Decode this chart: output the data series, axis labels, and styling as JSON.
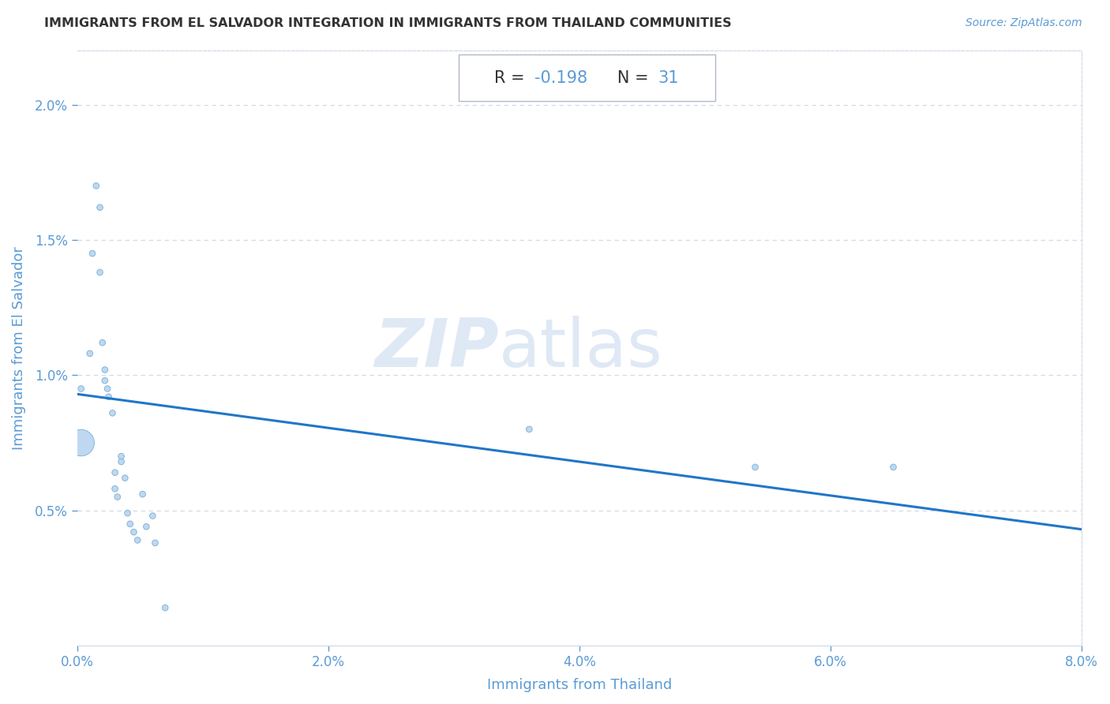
{
  "title": "IMMIGRANTS FROM EL SALVADOR INTEGRATION IN IMMIGRANTS FROM THAILAND COMMUNITIES",
  "source": "Source: ZipAtlas.com",
  "xlabel": "Immigrants from Thailand",
  "ylabel": "Immigrants from El Salvador",
  "R": -0.198,
  "N": 31,
  "xlim": [
    0.0,
    0.08
  ],
  "ylim": [
    0.0,
    0.022
  ],
  "xticks": [
    0.0,
    0.02,
    0.04,
    0.06,
    0.08
  ],
  "yticks": [
    0.005,
    0.01,
    0.015,
    0.02
  ],
  "xtick_labels": [
    "0.0%",
    "2.0%",
    "4.0%",
    "6.0%",
    "8.0%"
  ],
  "ytick_labels": [
    "0.5%",
    "1.0%",
    "1.5%",
    "2.0%"
  ],
  "scatter_x": [
    0.0003,
    0.0003,
    0.001,
    0.0012,
    0.0015,
    0.0018,
    0.0018,
    0.002,
    0.0022,
    0.0022,
    0.0024,
    0.0025,
    0.0028,
    0.003,
    0.003,
    0.0032,
    0.0035,
    0.0035,
    0.0038,
    0.004,
    0.0042,
    0.0045,
    0.0048,
    0.0052,
    0.0055,
    0.006,
    0.0062,
    0.007,
    0.036,
    0.054,
    0.065
  ],
  "scatter_y": [
    0.0095,
    0.0075,
    0.0108,
    0.0145,
    0.017,
    0.0162,
    0.0138,
    0.0112,
    0.0102,
    0.0098,
    0.0095,
    0.0092,
    0.0086,
    0.0064,
    0.0058,
    0.0055,
    0.007,
    0.0068,
    0.0062,
    0.0049,
    0.0045,
    0.0042,
    0.0039,
    0.0056,
    0.0044,
    0.0048,
    0.0038,
    0.0014,
    0.008,
    0.0066,
    0.0066
  ],
  "scatter_sizes": [
    30,
    580,
    30,
    30,
    30,
    30,
    30,
    30,
    30,
    30,
    30,
    30,
    30,
    30,
    30,
    30,
    30,
    30,
    30,
    30,
    30,
    30,
    30,
    30,
    30,
    30,
    30,
    30,
    30,
    30,
    30
  ],
  "scatter_color": "#b8d4f0",
  "scatter_edge_color": "#7bafd4",
  "line_color": "#2176c7",
  "line_width": 2.2,
  "title_color": "#333333",
  "axis_color": "#5b9bd5",
  "grid_color": "#d0d8e4",
  "r_label_color": "#333333",
  "n_label_color": "#5b9bd5",
  "watermark_zip_color": "#c5d8ee",
  "watermark_atlas_color": "#c5d8ee",
  "watermark_alpha": 0.55,
  "line_intercept": 0.0093,
  "line_slope": -0.0625
}
